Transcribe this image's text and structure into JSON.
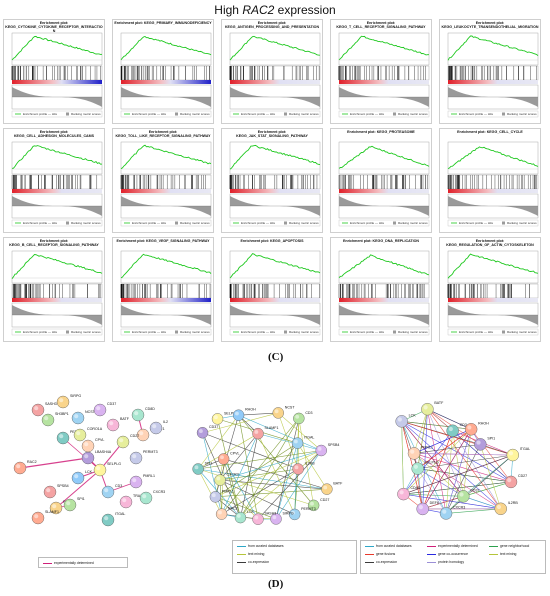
{
  "figure": {
    "title_prefix": "High ",
    "title_gene": "RAC2",
    "title_suffix": " expression",
    "label_c": "(C)",
    "label_d": "(D)"
  },
  "gsea_panels": [
    {
      "head": "Enrichment plot:",
      "name": "KEGG_CYTOKINE_CYTOKINE_RECEPTOR_INTERACTIO\nN",
      "shape": "early",
      "bar": "red-blue"
    },
    {
      "head": "Enrichment plot: KEGG_PRIMARY_IMMUNODEFICIENCY",
      "name": "",
      "shape": "early",
      "bar": "red-blue"
    },
    {
      "head": "Enrichment plot:",
      "name": "KEGG_ANTIGEN_PROCESSING_AND_PRESENTATION",
      "shape": "early",
      "bar": "red"
    },
    {
      "head": "Enrichment plot:",
      "name": "KEGG_T_CELL_RECEPTOR_SIGNALING_PATHWAY",
      "shape": "early",
      "bar": "red"
    },
    {
      "head": "Enrichment plot:",
      "name": "KEGG_LEUKOCYTE_TRANSENDOTHELIAL_MIGRATION",
      "shape": "early",
      "bar": "red"
    },
    {
      "head": "Enrichment plot:",
      "name": "KEGG_CELL_ADHESION_MOLECULES_CAMS",
      "shape": "early",
      "bar": "red"
    },
    {
      "head": "Enrichment plot:",
      "name": "KEGG_TOLL_LIKE_RECEPTOR_SIGNALING_PATHWAY",
      "shape": "early",
      "bar": "red"
    },
    {
      "head": "Enrichment plot:",
      "name": "KEGG_JAK_STAT_SIGNALING_PATHWAY",
      "shape": "early",
      "bar": "red"
    },
    {
      "head": "Enrichment plot: KEGG_PROTEASOME",
      "name": "",
      "shape": "mid",
      "bar": "red"
    },
    {
      "head": "Enrichment plot: KEGG_CELL_CYCLE",
      "name": "",
      "shape": "mid",
      "bar": "red"
    },
    {
      "head": "Enrichment plot:",
      "name": "KEGG_B_CELL_RECEPTOR_SIGNALING_PATHWAY",
      "shape": "early",
      "bar": "red"
    },
    {
      "head": "Enrichment plot: KEGG_VEGF_SIGNALING_PATHWAY",
      "name": "",
      "shape": "early",
      "bar": "red-blue"
    },
    {
      "head": "Enrichment plot: KEGG_APOPTOSIS",
      "name": "",
      "shape": "early",
      "bar": "red"
    },
    {
      "head": "Enrichment plot: KEGG_DNA_REPLICATION",
      "name": "",
      "shape": "mid",
      "bar": "red"
    },
    {
      "head": "Enrichment plot:",
      "name": "KEGG_REGULATION_OF_ACTIN_CYTOSKELETON",
      "shape": "early",
      "bar": "red"
    }
  ],
  "gsea_legend": {
    "profile": "Enrichment profile — Hits",
    "ranking": "Ranking metric scores"
  },
  "network1": {
    "nodes": [
      "SASH3",
      "SIRPG",
      "SH3BP1",
      "NCST",
      "CD37",
      "BATF",
      "CD8D",
      "MAPKE1",
      "IL2RB1",
      "CD27",
      "PERP1",
      "RAC2",
      "LBASH4A",
      "SELPLG",
      "LCK",
      "SPSB4",
      "RHOH",
      "SPI1",
      "CD3",
      "PMRL1",
      "TRAF3IP3",
      "CXCR3",
      "CPVL",
      "PERMT3",
      "CORO1A",
      "ITGAL",
      "SLAMF1"
    ],
    "legend": "experimentally determined"
  },
  "network2": {
    "nodes": [
      "IL2RB",
      "BATF",
      "CD27",
      "PERMT3",
      "SIRPG",
      "SASH3",
      "LCK",
      "RAC2",
      "PMRL1",
      "CXCR3",
      "SPI1",
      "CPVL",
      "CD37",
      "SELPLG",
      "RHOH",
      "SLAMF1",
      "NCST",
      "CD3",
      "ITGAL",
      "SPSB4"
    ],
    "legend": [
      "from curated databases",
      "text mining",
      "co-expression"
    ]
  },
  "network3": {
    "nodes": [
      "CD27",
      "IL2RB",
      "CD37",
      "CXCR3",
      "DEF6",
      "CD8E",
      "SELPLG",
      "PMRL1",
      "LCK",
      "BATF",
      "CD3",
      "RHOH",
      "SPI1",
      "ITGAL"
    ],
    "legend": [
      "from curated databases",
      "experimentally determined",
      "gene neighborhood",
      "gene fusions",
      "gene co-occurrence",
      "text mining",
      "co-expression",
      "protein homology"
    ]
  }
}
